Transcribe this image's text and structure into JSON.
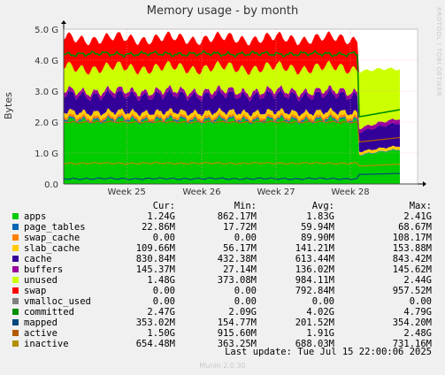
{
  "chart_data": {
    "type": "area",
    "title": "Memory usage - by month",
    "ylabel": "Bytes",
    "xlabel": "",
    "ylim": [
      0,
      5.0
    ],
    "yunit": "G",
    "y_ticks": [
      "0.0",
      "1.0 G",
      "2.0 G",
      "3.0 G",
      "4.0 G",
      "5.0 G"
    ],
    "x_ticks": [
      "Week 25",
      "Week 26",
      "Week 27",
      "Week 28"
    ],
    "grid": true,
    "stack_order": [
      "apps",
      "page_tables",
      "swap_cache",
      "slab_cache",
      "cache",
      "buffers",
      "unused",
      "swap"
    ],
    "line_series": [
      "committed",
      "mapped",
      "active",
      "inactive"
    ],
    "series": [
      {
        "name": "apps",
        "color": "#00cc00",
        "before": 2.05,
        "after": 1.1
      },
      {
        "name": "page_tables",
        "color": "#0066b3",
        "before": 0.05,
        "after": 0.02
      },
      {
        "name": "swap_cache",
        "color": "#ff8000",
        "before": 0.08,
        "after": 0.0
      },
      {
        "name": "slab_cache",
        "color": "#ffcc00",
        "before": 0.14,
        "after": 0.11
      },
      {
        "name": "cache",
        "color": "#330099",
        "before": 0.55,
        "after": 0.75
      },
      {
        "name": "buffers",
        "color": "#990099",
        "before": 0.13,
        "after": 0.14
      },
      {
        "name": "unused",
        "color": "#ccff00",
        "before": 0.75,
        "after": 1.7
      },
      {
        "name": "swap",
        "color": "#ff0000",
        "before": 0.95,
        "after": 0.0
      },
      {
        "name": "vmalloc_used",
        "color": "#808080",
        "before": 0.0,
        "after": 0.0
      },
      {
        "name": "committed",
        "color": "#008f00",
        "before": 4.2,
        "after": 2.4
      },
      {
        "name": "mapped",
        "color": "#00487d",
        "before": 0.17,
        "after": 0.34
      },
      {
        "name": "active",
        "color": "#b35a00",
        "before": 2.0,
        "after": 1.5
      },
      {
        "name": "inactive",
        "color": "#b38f00",
        "before": 0.67,
        "after": 0.64
      }
    ]
  },
  "legend": {
    "headers": {
      "cur": "Cur:",
      "min": "Min:",
      "avg": "Avg:",
      "max": "Max:"
    },
    "rows": [
      {
        "name": "apps",
        "color": "#00cc00",
        "cur": "1.24G",
        "min": "862.17M",
        "avg": "1.83G",
        "max": "2.41G"
      },
      {
        "name": "page_tables",
        "color": "#0066b3",
        "cur": "22.86M",
        "min": "17.72M",
        "avg": "59.94M",
        "max": "68.67M"
      },
      {
        "name": "swap_cache",
        "color": "#ff8000",
        "cur": "0.00",
        "min": "0.00",
        "avg": "89.90M",
        "max": "108.17M"
      },
      {
        "name": "slab_cache",
        "color": "#ffcc00",
        "cur": "109.66M",
        "min": "56.17M",
        "avg": "141.21M",
        "max": "153.88M"
      },
      {
        "name": "cache",
        "color": "#330099",
        "cur": "830.84M",
        "min": "432.38M",
        "avg": "613.44M",
        "max": "843.42M"
      },
      {
        "name": "buffers",
        "color": "#990099",
        "cur": "145.37M",
        "min": "27.14M",
        "avg": "136.02M",
        "max": "145.62M"
      },
      {
        "name": "unused",
        "color": "#ccff00",
        "cur": "1.48G",
        "min": "373.08M",
        "avg": "984.11M",
        "max": "2.44G"
      },
      {
        "name": "swap",
        "color": "#ff0000",
        "cur": "0.00",
        "min": "0.00",
        "avg": "792.84M",
        "max": "957.52M"
      },
      {
        "name": "vmalloc_used",
        "color": "#808080",
        "cur": "0.00",
        "min": "0.00",
        "avg": "0.00",
        "max": "0.00"
      },
      {
        "name": "committed",
        "color": "#008f00",
        "cur": "2.47G",
        "min": "2.09G",
        "avg": "4.02G",
        "max": "4.79G"
      },
      {
        "name": "mapped",
        "color": "#00487d",
        "cur": "353.02M",
        "min": "154.77M",
        "avg": "201.52M",
        "max": "354.20M"
      },
      {
        "name": "active",
        "color": "#b35a00",
        "cur": "1.50G",
        "min": "915.60M",
        "avg": "1.91G",
        "max": "2.48G"
      },
      {
        "name": "inactive",
        "color": "#b38f00",
        "cur": "654.48M",
        "min": "363.25M",
        "avg": "688.03M",
        "max": "731.16M"
      }
    ]
  },
  "footer": {
    "last_update": "Last update: Tue Jul 15 22:00:06 2025"
  },
  "side_text": "RRDTOOL / TOBI OETIKER",
  "munin": "Munin 2.0.30"
}
